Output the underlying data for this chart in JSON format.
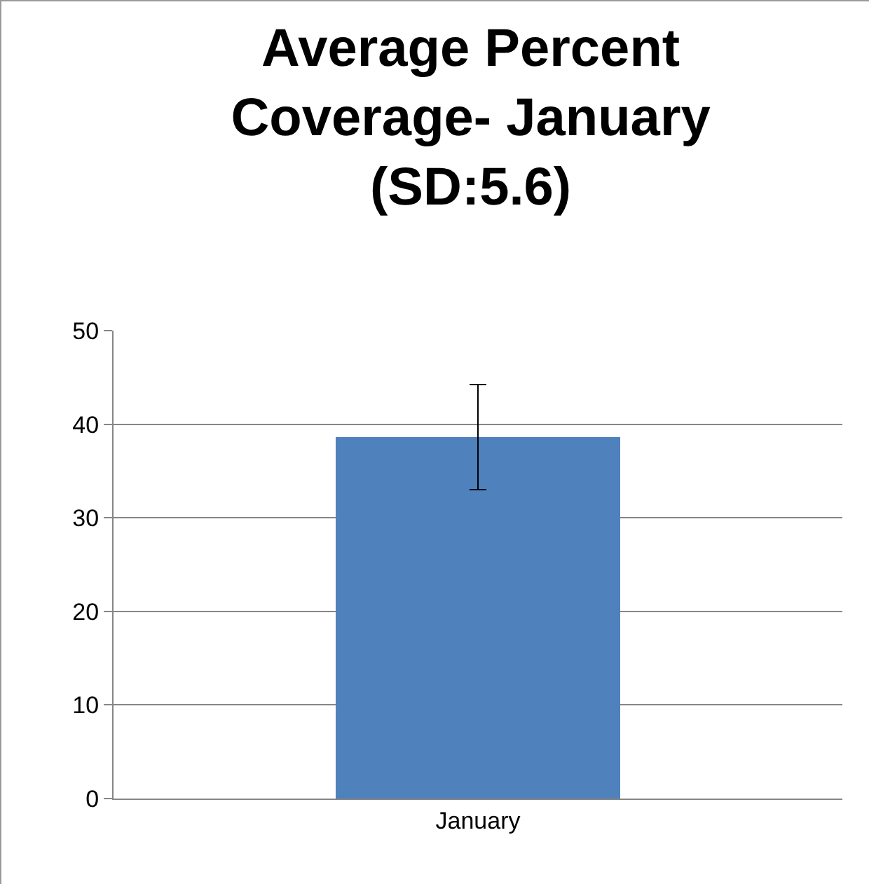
{
  "chart_data": {
    "type": "bar",
    "title": "Average Percent\nCoverage- January\n(SD:5.6)",
    "categories": [
      "January"
    ],
    "values": [
      38.6
    ],
    "errors": [
      5.6
    ],
    "color": "#4f81bd",
    "ylim": [
      0,
      50
    ],
    "yticks": [
      0,
      10,
      20,
      30,
      40,
      50
    ],
    "grid": "y"
  }
}
